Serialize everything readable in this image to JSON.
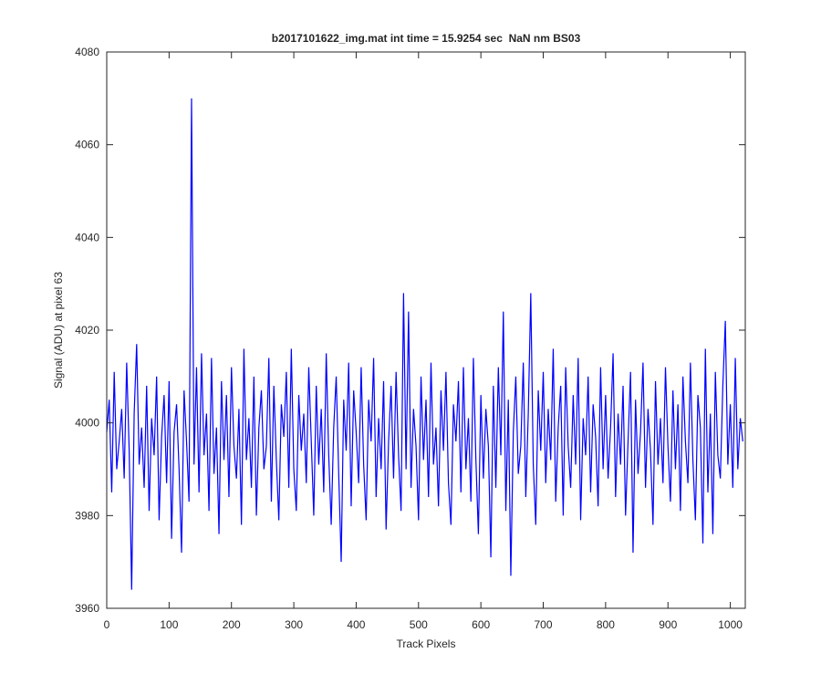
{
  "chart_data": {
    "type": "line",
    "title": "b2017101622_img.mat int time = 15.9254 sec  NaN nm BS03",
    "xlabel": "Track Pixels",
    "ylabel": "Signal (ADU) at pixel 63",
    "color": "#0000ff",
    "xlim": [
      0,
      1024
    ],
    "ylim": [
      3960,
      4080
    ],
    "xticks": [
      0,
      100,
      200,
      300,
      400,
      500,
      600,
      700,
      800,
      900,
      1000
    ],
    "yticks": [
      3960,
      3980,
      4000,
      4020,
      4040,
      4060,
      4080
    ],
    "x": [
      0,
      4,
      8,
      12,
      16,
      20,
      24,
      28,
      32,
      36,
      40,
      44,
      48,
      52,
      56,
      60,
      64,
      68,
      72,
      76,
      80,
      84,
      88,
      92,
      96,
      100,
      104,
      108,
      112,
      116,
      120,
      124,
      128,
      132,
      136,
      140,
      144,
      148,
      152,
      156,
      160,
      164,
      168,
      172,
      176,
      180,
      184,
      188,
      192,
      196,
      200,
      204,
      208,
      212,
      216,
      220,
      224,
      228,
      232,
      236,
      240,
      244,
      248,
      252,
      256,
      260,
      264,
      268,
      272,
      276,
      280,
      284,
      288,
      292,
      296,
      300,
      304,
      308,
      312,
      316,
      320,
      324,
      328,
      332,
      336,
      340,
      344,
      348,
      352,
      356,
      360,
      364,
      368,
      372,
      376,
      380,
      384,
      388,
      392,
      396,
      400,
      404,
      408,
      412,
      416,
      420,
      424,
      428,
      432,
      436,
      440,
      444,
      448,
      452,
      456,
      460,
      464,
      468,
      472,
      476,
      480,
      484,
      488,
      492,
      496,
      500,
      504,
      508,
      512,
      516,
      520,
      524,
      528,
      532,
      536,
      540,
      544,
      548,
      552,
      556,
      560,
      564,
      568,
      572,
      576,
      580,
      584,
      588,
      592,
      596,
      600,
      604,
      608,
      612,
      616,
      620,
      624,
      628,
      632,
      636,
      640,
      644,
      648,
      652,
      656,
      660,
      664,
      668,
      672,
      676,
      680,
      684,
      688,
      692,
      696,
      700,
      704,
      708,
      712,
      716,
      720,
      724,
      728,
      732,
      736,
      740,
      744,
      748,
      752,
      756,
      760,
      764,
      768,
      772,
      776,
      780,
      784,
      788,
      792,
      796,
      800,
      804,
      808,
      812,
      816,
      820,
      824,
      828,
      832,
      836,
      840,
      844,
      848,
      852,
      856,
      860,
      864,
      868,
      872,
      876,
      880,
      884,
      888,
      892,
      896,
      900,
      904,
      908,
      912,
      916,
      920,
      924,
      928,
      932,
      936,
      940,
      944,
      948,
      952,
      956,
      960,
      964,
      968,
      972,
      976,
      980,
      984,
      988,
      992,
      996,
      1000,
      1004,
      1008,
      1012,
      1016,
      1020
    ],
    "values": [
      3998,
      4005,
      3985,
      4011,
      3990,
      3996,
      4003,
      3988,
      4013,
      3994,
      3964,
      4002,
      4017,
      3991,
      3999,
      3986,
      4008,
      3981,
      4001,
      3993,
      4010,
      3979,
      3997,
      4006,
      3987,
      4009,
      3975,
      3998,
      4004,
      3990,
      3972,
      4007,
      3996,
      3983,
      4070,
      3991,
      4012,
      3985,
      4015,
      3993,
      4002,
      3981,
      4014,
      3989,
      3999,
      3976,
      4009,
      3992,
      4006,
      3984,
      4012,
      3995,
      3988,
      4003,
      3978,
      4016,
      3992,
      4001,
      3986,
      4010,
      3980,
      3999,
      4007,
      3990,
      3995,
      4014,
      3983,
      4008,
      3992,
      3979,
      4004,
      3997,
      4011,
      3986,
      4016,
      3990,
      3981,
      4006,
      3994,
      4002,
      3987,
      4012,
      3996,
      3980,
      4008,
      3991,
      4003,
      3985,
      4015,
      3993,
      3978,
      3999,
      4010,
      3989,
      3970,
      4005,
      3994,
      4013,
      3982,
      4007,
      3998,
      3987,
      4012,
      3991,
      3979,
      4005,
      3996,
      4014,
      3984,
      4001,
      3990,
      4009,
      3977,
      3996,
      4008,
      3988,
      4011,
      3993,
      3981,
      4028,
      3990,
      4024,
      3986,
      4003,
      3995,
      3979,
      4010,
      3992,
      4005,
      3984,
      4013,
      3991,
      3999,
      3982,
      4007,
      3994,
      4011,
      3987,
      3978,
      4004,
      3996,
      4009,
      3985,
      4012,
      3990,
      4001,
      3983,
      4014,
      3992,
      3976,
      4006,
      3988,
      4003,
      3995,
      3971,
      4008,
      3986,
      4012,
      3993,
      4024,
      3981,
      4005,
      3967,
      3998,
      4010,
      3989,
      3995,
      4013,
      3984,
      4002,
      4028,
      3991,
      3978,
      4007,
      3994,
      4011,
      3987,
      4003,
      3992,
      4016,
      3983,
      3999,
      4008,
      3980,
      4012,
      3995,
      3986,
      4006,
      3991,
      4014,
      3979,
      4001,
      3993,
      4010,
      3985,
      4004,
      3997,
      3982,
      4012,
      3990,
      4006,
      3988,
      3999,
      4015,
      3984,
      4002,
      3991,
      4008,
      3980,
      3996,
      4011,
      3972,
      4005,
      3989,
      3998,
      4013,
      3986,
      4003,
      3994,
      3978,
      4009,
      3991,
      4001,
      3987,
      4012,
      3995,
      3983,
      4007,
      3990,
      4004,
      3981,
      4010,
      3996,
      3987,
      4013,
      3992,
      3979,
      4006,
      3999,
      3974,
      4016,
      3985,
      4002,
      3976,
      4011,
      3993,
      3988,
      4008,
      4022,
      3991,
      4004,
      3986,
      4014,
      3990,
      4001,
      3996
    ]
  }
}
